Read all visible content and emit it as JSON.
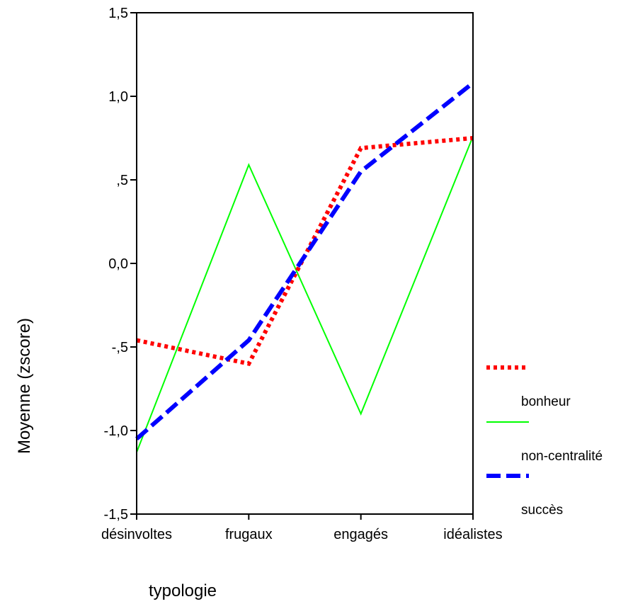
{
  "chart_data": {
    "type": "line",
    "categories": [
      "désinvoltes",
      "frugaux",
      "engagés",
      "idéalistes"
    ],
    "xlabel": "typologie",
    "ylabel": "Moyenne (zscore)",
    "ylim": [
      -1.5,
      1.5
    ],
    "yticks": [
      {
        "value": 1.5,
        "label": "1,5"
      },
      {
        "value": 1.0,
        "label": "1,0"
      },
      {
        "value": 0.5,
        "label": ",5"
      },
      {
        "value": 0.0,
        "label": "0,0"
      },
      {
        "value": -0.5,
        "label": "-,5"
      },
      {
        "value": -1.0,
        "label": "-1,0"
      },
      {
        "value": -1.5,
        "label": "-1,5"
      }
    ],
    "grid": false,
    "legend_position": "right",
    "series": [
      {
        "name": "bonheur",
        "values": [
          -0.46,
          -0.6,
          0.69,
          0.75
        ],
        "color": "#ff0000",
        "style": "dotted"
      },
      {
        "name": "non-centralité",
        "values": [
          -1.13,
          0.59,
          -0.9,
          0.76
        ],
        "color": "#00ff00",
        "style": "solid"
      },
      {
        "name": "succès",
        "values": [
          -1.05,
          -0.46,
          0.55,
          1.08
        ],
        "color": "#0000ff",
        "style": "dashed"
      }
    ]
  }
}
